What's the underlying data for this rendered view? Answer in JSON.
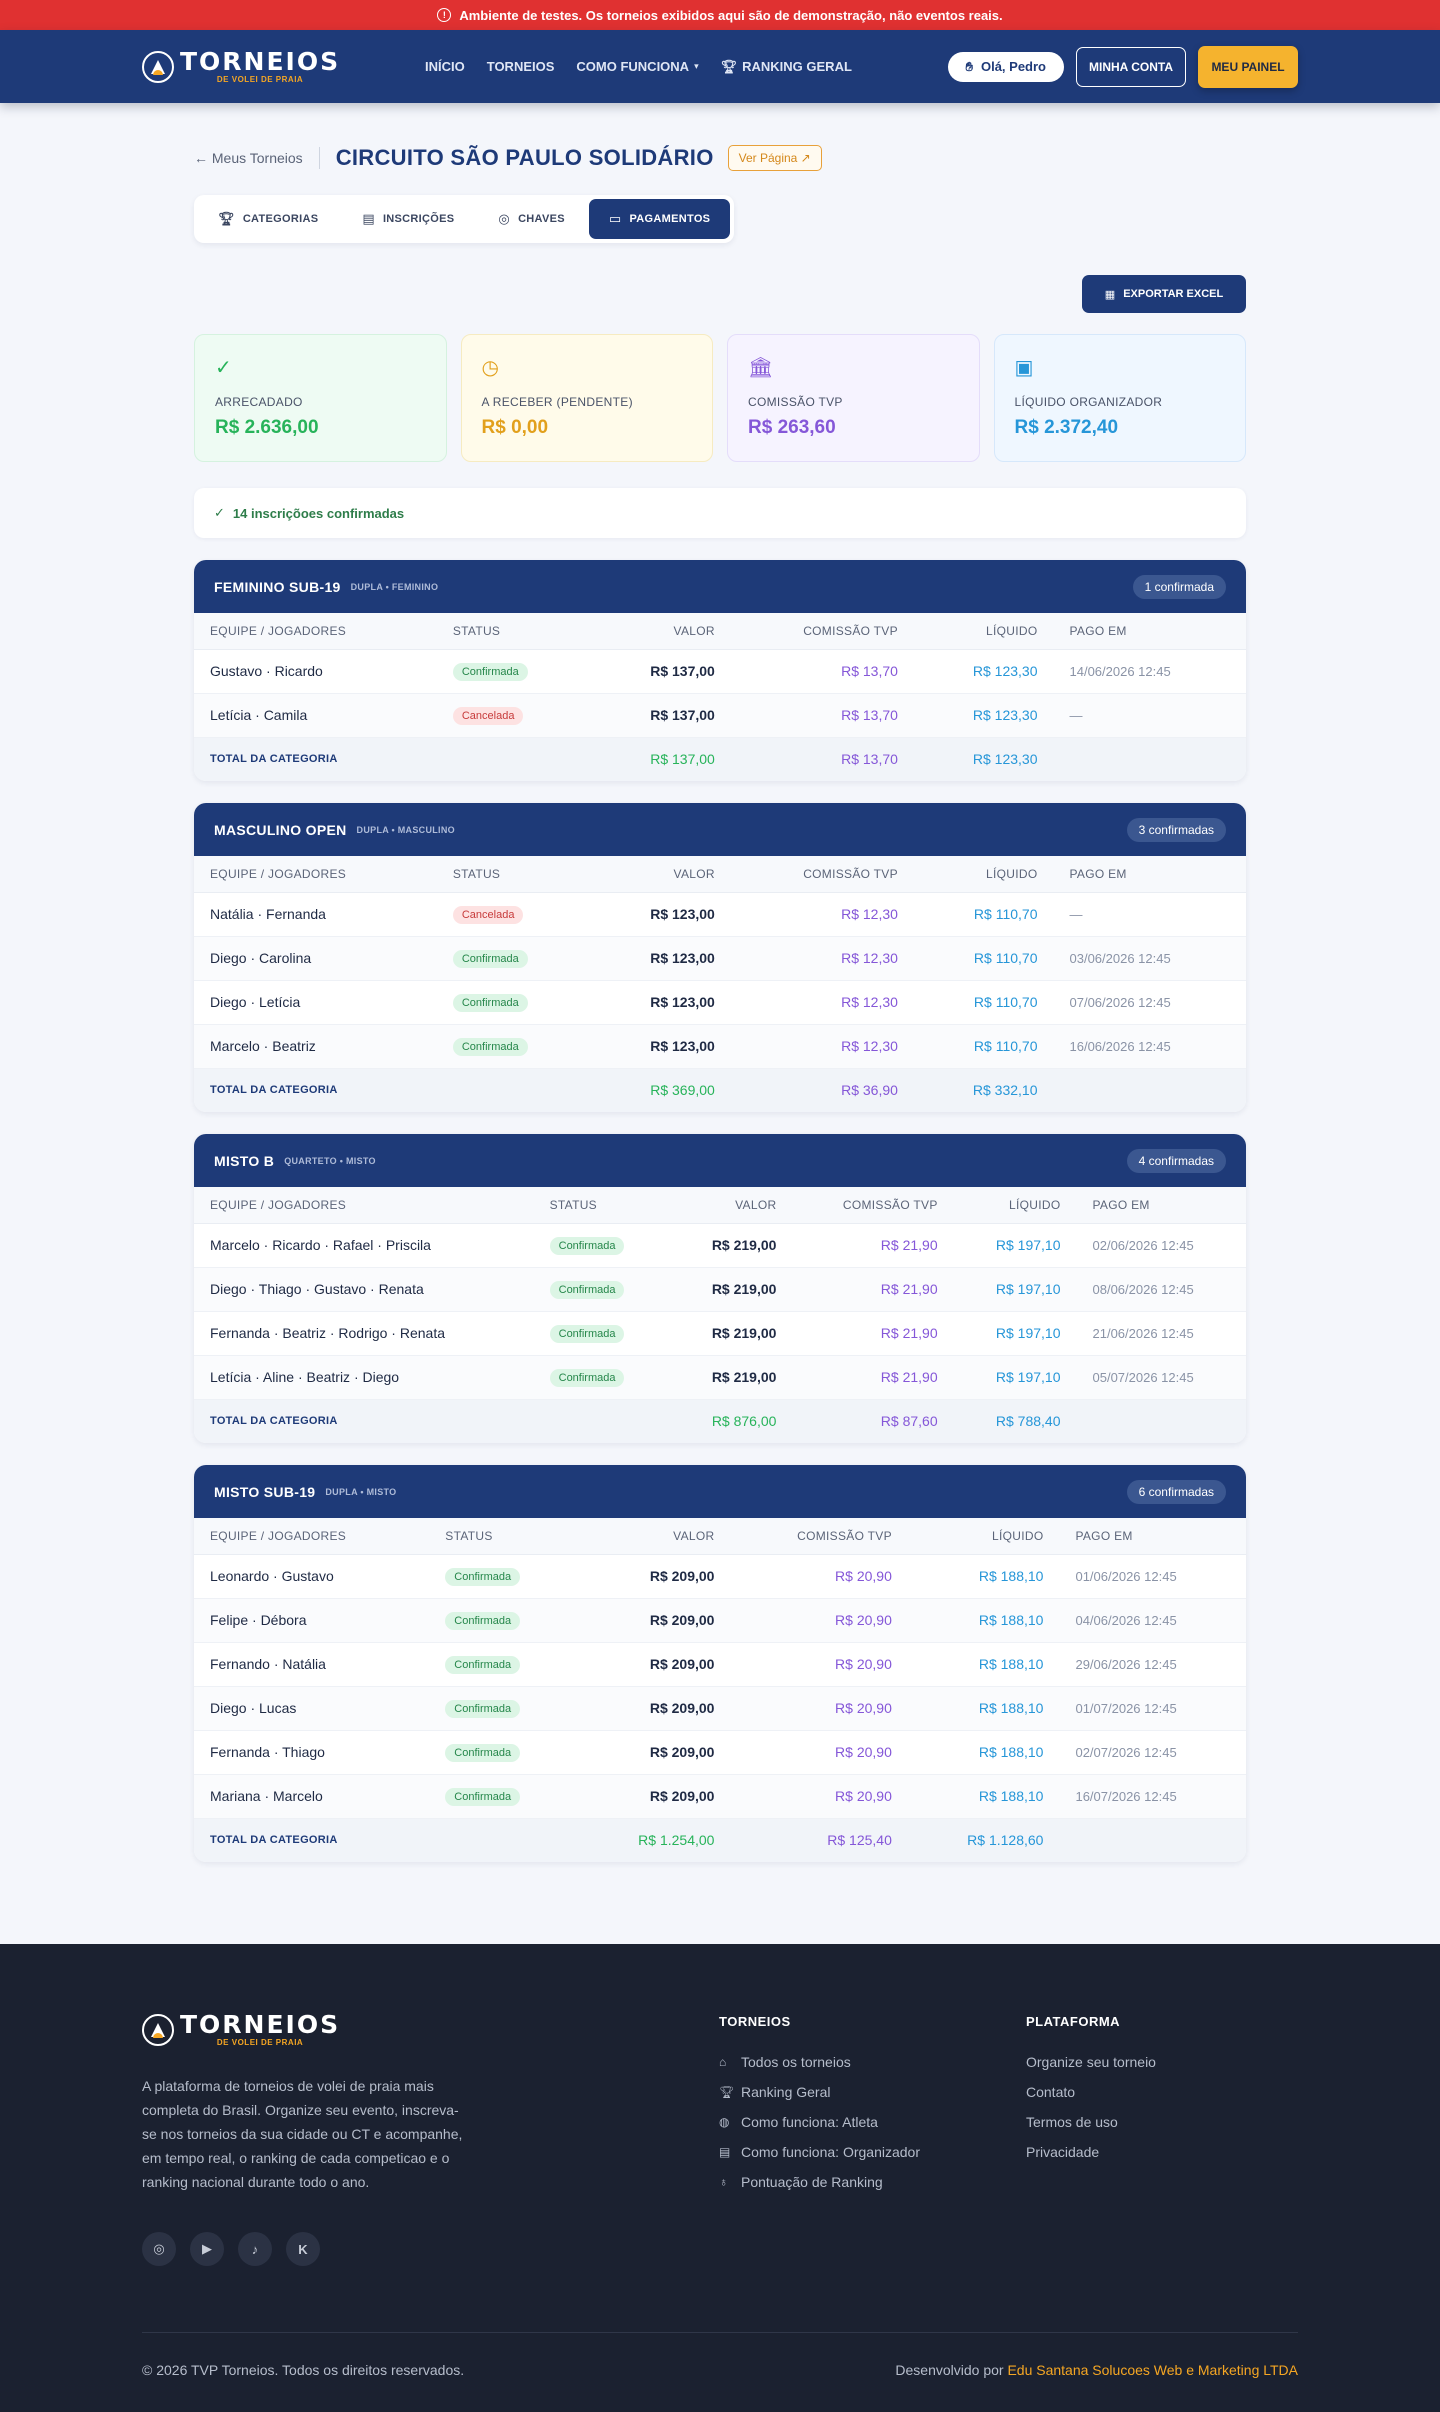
{
  "alert": {
    "text": "Ambiente de testes. Os torneios exibidos aqui são de demonstração, não eventos reais."
  },
  "header": {
    "logo": "TORNEIOS",
    "logo_sub": "DE VOLEI DE PRAIA",
    "nav": [
      "INÍCIO",
      "TORNEIOS",
      "COMO FUNCIONA",
      "RANKING GERAL"
    ],
    "hello": "Olá, Pedro",
    "account": "MINHA CONTA",
    "panel": "MEU PAINEL"
  },
  "page": {
    "back": "← Meus Torneios",
    "title": "CIRCUITO SÃO PAULO SOLIDÁRIO",
    "view_page": "Ver Página ↗",
    "tabs": [
      "CATEGORIAS",
      "INSCRIÇÕES",
      "CHAVES",
      "PAGAMENTOS"
    ],
    "export": "EXPORTAR EXCEL",
    "confirmed": "14 inscriçõoes confirmadas"
  },
  "cards": [
    {
      "label": "ARRECADADO",
      "value": "R$ 2.636,00",
      "icon": "check-icon"
    },
    {
      "label": "A RECEBER (PENDENTE)",
      "value": "R$ 0,00",
      "icon": "clock-icon"
    },
    {
      "label": "COMISSÃO TVP",
      "value": "R$ 263,60",
      "icon": "bank-icon"
    },
    {
      "label": "LÍQUIDO ORGANIZADOR",
      "value": "R$ 2.372,40",
      "icon": "wallet-icon"
    }
  ],
  "columns": [
    "EQUIPE / JOGADORES",
    "STATUS",
    "VALOR",
    "COMISSÃO TVP",
    "LÍQUIDO",
    "PAGO EM"
  ],
  "total_label": "TOTAL DA CATEGORIA",
  "categories": [
    {
      "name": "FEMININO SUB-19",
      "sub": "DUPLA • FEMININO",
      "count": "1 confirmada",
      "rows": [
        {
          "team": "Gustavo · Ricardo",
          "status": "Confirmada",
          "ok": true,
          "valor": "R$ 137,00",
          "comm": "R$ 13,70",
          "liq": "R$ 123,30",
          "paid": "14/06/2026 12:45"
        },
        {
          "team": "Letícia · Camila",
          "status": "Cancelada",
          "ok": false,
          "valor": "R$ 137,00",
          "comm": "R$ 13,70",
          "liq": "R$ 123,30",
          "paid": "—"
        }
      ],
      "total": {
        "valor": "R$ 137,00",
        "comm": "R$ 13,70",
        "liq": "R$ 123,30"
      }
    },
    {
      "name": "MASCULINO OPEN",
      "sub": "DUPLA • MASCULINO",
      "count": "3 confirmadas",
      "rows": [
        {
          "team": "Natália · Fernanda",
          "status": "Cancelada",
          "ok": false,
          "valor": "R$ 123,00",
          "comm": "R$ 12,30",
          "liq": "R$ 110,70",
          "paid": "—"
        },
        {
          "team": "Diego · Carolina",
          "status": "Confirmada",
          "ok": true,
          "valor": "R$ 123,00",
          "comm": "R$ 12,30",
          "liq": "R$ 110,70",
          "paid": "03/06/2026 12:45"
        },
        {
          "team": "Diego · Letícia",
          "status": "Confirmada",
          "ok": true,
          "valor": "R$ 123,00",
          "comm": "R$ 12,30",
          "liq": "R$ 110,70",
          "paid": "07/06/2026 12:45"
        },
        {
          "team": "Marcelo · Beatriz",
          "status": "Confirmada",
          "ok": true,
          "valor": "R$ 123,00",
          "comm": "R$ 12,30",
          "liq": "R$ 110,70",
          "paid": "16/06/2026 12:45"
        }
      ],
      "total": {
        "valor": "R$ 369,00",
        "comm": "R$ 36,90",
        "liq": "R$ 332,10"
      }
    },
    {
      "name": "MISTO B",
      "sub": "QUARTETO • MISTO",
      "count": "4 confirmadas",
      "rows": [
        {
          "team": "Marcelo · Ricardo · Rafael · Priscila",
          "status": "Confirmada",
          "ok": true,
          "valor": "R$ 219,00",
          "comm": "R$ 21,90",
          "liq": "R$ 197,10",
          "paid": "02/06/2026 12:45"
        },
        {
          "team": "Diego · Thiago · Gustavo · Renata",
          "status": "Confirmada",
          "ok": true,
          "valor": "R$ 219,00",
          "comm": "R$ 21,90",
          "liq": "R$ 197,10",
          "paid": "08/06/2026 12:45"
        },
        {
          "team": "Fernanda · Beatriz · Rodrigo · Renata",
          "status": "Confirmada",
          "ok": true,
          "valor": "R$ 219,00",
          "comm": "R$ 21,90",
          "liq": "R$ 197,10",
          "paid": "21/06/2026 12:45"
        },
        {
          "team": "Letícia · Aline · Beatriz · Diego",
          "status": "Confirmada",
          "ok": true,
          "valor": "R$ 219,00",
          "comm": "R$ 21,90",
          "liq": "R$ 197,10",
          "paid": "05/07/2026 12:45"
        }
      ],
      "total": {
        "valor": "R$ 876,00",
        "comm": "R$ 87,60",
        "liq": "R$ 788,40"
      }
    },
    {
      "name": "MISTO SUB-19",
      "sub": "DUPLA • MISTO",
      "count": "6 confirmadas",
      "rows": [
        {
          "team": "Leonardo · Gustavo",
          "status": "Confirmada",
          "ok": true,
          "valor": "R$ 209,00",
          "comm": "R$ 20,90",
          "liq": "R$ 188,10",
          "paid": "01/06/2026 12:45"
        },
        {
          "team": "Felipe · Débora",
          "status": "Confirmada",
          "ok": true,
          "valor": "R$ 209,00",
          "comm": "R$ 20,90",
          "liq": "R$ 188,10",
          "paid": "04/06/2026 12:45"
        },
        {
          "team": "Fernando · Natália",
          "status": "Confirmada",
          "ok": true,
          "valor": "R$ 209,00",
          "comm": "R$ 20,90",
          "liq": "R$ 188,10",
          "paid": "29/06/2026 12:45"
        },
        {
          "team": "Diego · Lucas",
          "status": "Confirmada",
          "ok": true,
          "valor": "R$ 209,00",
          "comm": "R$ 20,90",
          "liq": "R$ 188,10",
          "paid": "01/07/2026 12:45"
        },
        {
          "team": "Fernanda · Thiago",
          "status": "Confirmada",
          "ok": true,
          "valor": "R$ 209,00",
          "comm": "R$ 20,90",
          "liq": "R$ 188,10",
          "paid": "02/07/2026 12:45"
        },
        {
          "team": "Mariana · Marcelo",
          "status": "Confirmada",
          "ok": true,
          "valor": "R$ 209,00",
          "comm": "R$ 20,90",
          "liq": "R$ 188,10",
          "paid": "16/07/2026 12:45"
        }
      ],
      "total": {
        "valor": "R$ 1.254,00",
        "comm": "R$ 125,40",
        "liq": "R$ 1.128,60"
      }
    }
  ],
  "footer": {
    "desc": "A plataforma de torneios de volei de praia mais completa do Brasil. Organize seu evento, inscreva-se nos torneios da sua cidade ou CT e acompanhe, em tempo real, o ranking de cada competicao e o ranking nacional durante todo o ano.",
    "col1_title": "TORNEIOS",
    "col1": [
      "Todos os torneios",
      "Ranking Geral",
      "Como funciona: Atleta",
      "Como funciona: Organizador",
      "Pontuação de Ranking"
    ],
    "col2_title": "PLATAFORMA",
    "col2": [
      "Organize seu torneio",
      "Contato",
      "Termos de uso",
      "Privacidade"
    ],
    "socials": [
      "instagram-icon",
      "youtube-icon",
      "tiktok-icon",
      "kwai-icon"
    ],
    "copyright": "© 2026 TVP Torneios. Todos os direitos reservados.",
    "dev_prefix": "Desenvolvido por ",
    "dev_name": "Edu Santana Solucoes Web e Marketing LTDA"
  }
}
